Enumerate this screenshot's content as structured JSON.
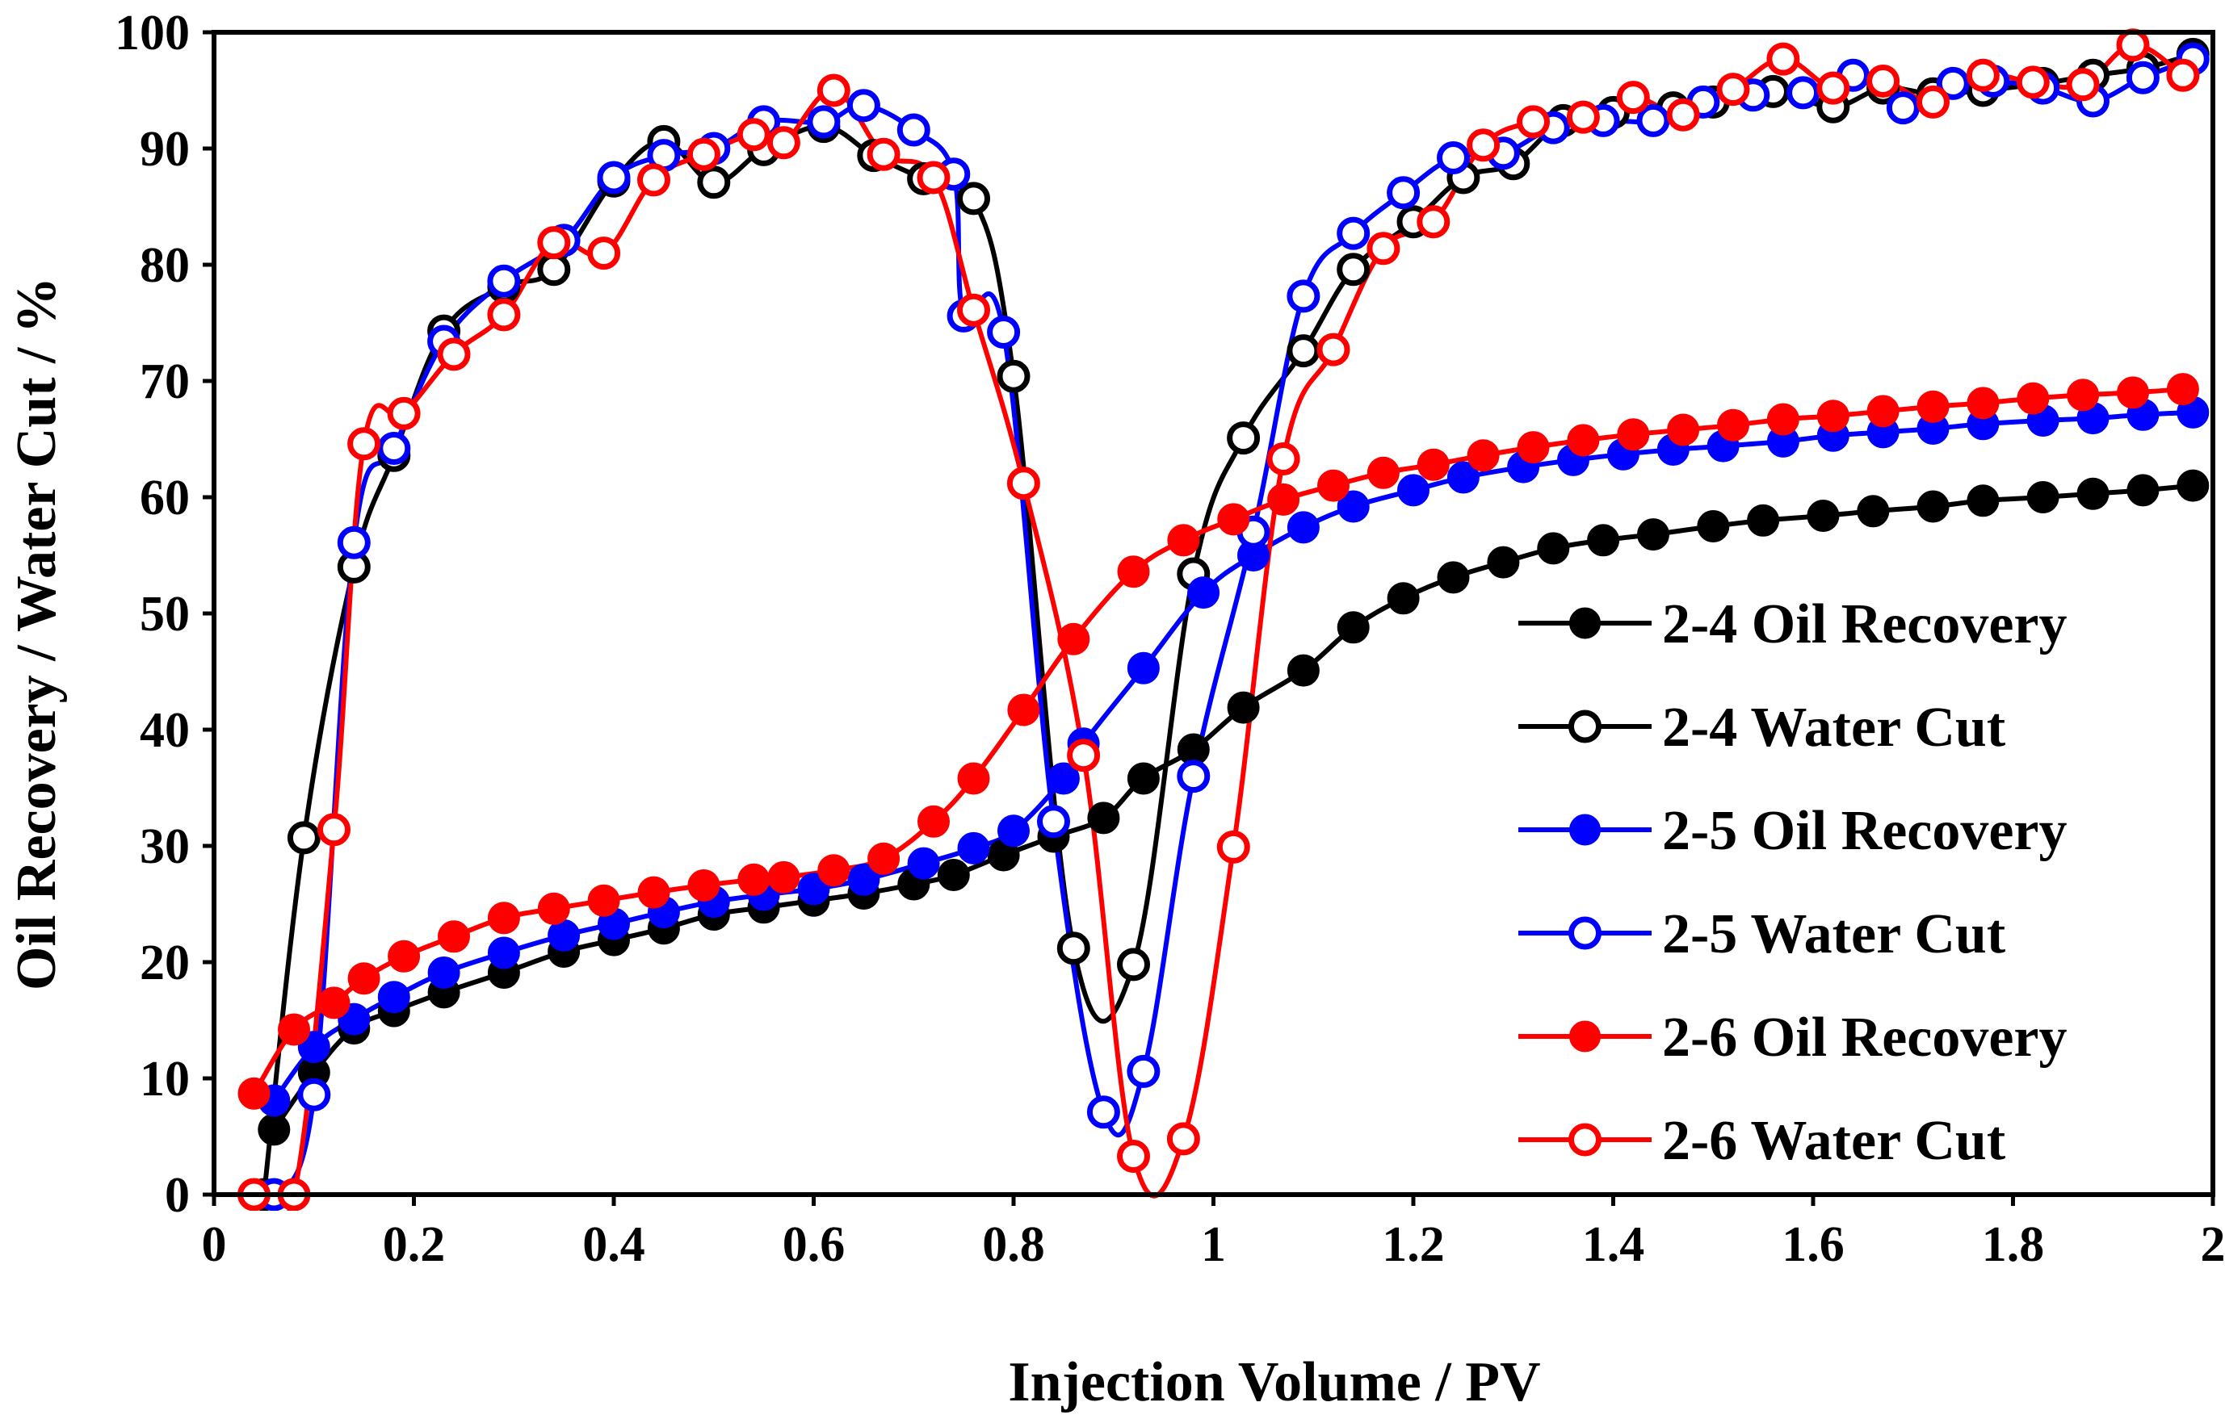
{
  "chart_data": {
    "type": "line",
    "title": "",
    "xlabel": "Injection Volume / PV",
    "ylabel": "Oil Recovery / Water Cut / %",
    "xlim": [
      0,
      2
    ],
    "ylim": [
      0,
      100
    ],
    "xticks": [
      0,
      0.2,
      0.4,
      0.6,
      0.8,
      1,
      1.2,
      1.4,
      1.6,
      1.8,
      2
    ],
    "xtick_labels": [
      "0",
      "0.2",
      "0.4",
      "0.6",
      "0.8",
      "1",
      "1.2",
      "1.4",
      "1.6",
      "1.8",
      "2"
    ],
    "yticks": [
      0,
      10,
      20,
      30,
      40,
      50,
      60,
      70,
      80,
      90,
      100
    ],
    "ytick_labels": [
      "0",
      "10",
      "20",
      "30",
      "40",
      "50",
      "60",
      "70",
      "80",
      "90",
      "100"
    ],
    "grid": false,
    "legend_position": "right",
    "series": [
      {
        "name": "2-4 Oil Recovery",
        "color": "#000000",
        "marker": "filled",
        "x": [
          0.06,
          0.1,
          0.14,
          0.18,
          0.23,
          0.29,
          0.35,
          0.4,
          0.45,
          0.5,
          0.55,
          0.6,
          0.65,
          0.7,
          0.74,
          0.79,
          0.84,
          0.89,
          0.93,
          0.98,
          1.03,
          1.09,
          1.14,
          1.19,
          1.24,
          1.29,
          1.34,
          1.39,
          1.44,
          1.5,
          1.55,
          1.61,
          1.66,
          1.72,
          1.77,
          1.83,
          1.88,
          1.93,
          1.98
        ],
        "y": [
          5.6,
          10.5,
          14.3,
          15.8,
          17.4,
          19.1,
          20.9,
          21.9,
          22.9,
          24.1,
          24.7,
          25.3,
          25.9,
          26.7,
          27.5,
          29.2,
          30.8,
          32.4,
          35.8,
          38.3,
          41.9,
          45.1,
          48.8,
          51.3,
          53.1,
          54.4,
          55.6,
          56.3,
          56.8,
          57.5,
          58.0,
          58.4,
          58.8,
          59.2,
          59.7,
          60.0,
          60.3,
          60.6,
          61.0
        ]
      },
      {
        "name": "2-4 Water Cut",
        "color": "#000000",
        "marker": "open",
        "x": [
          0.05,
          0.09,
          0.14,
          0.18,
          0.23,
          0.29,
          0.34,
          0.4,
          0.45,
          0.5,
          0.55,
          0.61,
          0.66,
          0.71,
          0.76,
          0.8,
          0.86,
          0.92,
          0.98,
          1.03,
          1.09,
          1.14,
          1.2,
          1.25,
          1.3,
          1.35,
          1.4,
          1.46,
          1.5,
          1.56,
          1.62,
          1.67,
          1.72,
          1.77,
          1.83,
          1.88,
          1.93,
          1.98
        ],
        "y": [
          0,
          30.7,
          54.0,
          63.6,
          74.3,
          78.1,
          79.6,
          87.2,
          90.6,
          87.1,
          89.9,
          91.9,
          89.4,
          87.4,
          85.7,
          70.4,
          21.2,
          19.8,
          53.4,
          65.1,
          72.6,
          79.6,
          83.7,
          87.5,
          88.7,
          92.4,
          93.1,
          93.5,
          94.0,
          94.9,
          93.6,
          95.2,
          94.7,
          95.0,
          95.6,
          96.3,
          96.9,
          98.1
        ]
      },
      {
        "name": "2-5 Oil Recovery",
        "color": "#0000ff",
        "marker": "filled",
        "x": [
          0.06,
          0.1,
          0.14,
          0.18,
          0.23,
          0.29,
          0.35,
          0.4,
          0.45,
          0.5,
          0.55,
          0.6,
          0.65,
          0.71,
          0.76,
          0.8,
          0.85,
          0.87,
          0.93,
          0.99,
          1.04,
          1.09,
          1.14,
          1.2,
          1.25,
          1.31,
          1.36,
          1.41,
          1.46,
          1.51,
          1.57,
          1.62,
          1.67,
          1.72,
          1.77,
          1.83,
          1.88,
          1.93,
          1.98
        ],
        "y": [
          8.1,
          12.7,
          15.1,
          17.0,
          19.1,
          20.8,
          22.3,
          23.3,
          24.3,
          25.2,
          25.8,
          26.3,
          27.1,
          28.5,
          29.8,
          31.3,
          35.8,
          38.8,
          45.3,
          51.8,
          55.0,
          57.4,
          59.2,
          60.6,
          61.7,
          62.6,
          63.2,
          63.7,
          64.1,
          64.4,
          64.8,
          65.3,
          65.6,
          65.9,
          66.3,
          66.6,
          66.8,
          67.1,
          67.3
        ]
      },
      {
        "name": "2-5 Water Cut",
        "color": "#0000ff",
        "marker": "open",
        "x": [
          0.06,
          0.1,
          0.14,
          0.18,
          0.23,
          0.29,
          0.35,
          0.4,
          0.45,
          0.5,
          0.55,
          0.61,
          0.65,
          0.7,
          0.74,
          0.75,
          0.79,
          0.84,
          0.89,
          0.93,
          0.98,
          1.04,
          1.09,
          1.14,
          1.19,
          1.24,
          1.29,
          1.34,
          1.39,
          1.44,
          1.49,
          1.54,
          1.59,
          1.64,
          1.69,
          1.74,
          1.78,
          1.83,
          1.88,
          1.93,
          1.98
        ],
        "y": [
          0,
          8.6,
          56.1,
          64.2,
          73.4,
          78.6,
          82.1,
          87.5,
          89.4,
          90.0,
          92.3,
          92.3,
          93.7,
          91.6,
          87.8,
          75.6,
          74.2,
          32.1,
          7.1,
          10.6,
          36.0,
          57.0,
          77.3,
          82.7,
          86.2,
          89.2,
          89.6,
          91.8,
          92.4,
          92.4,
          94.0,
          94.6,
          94.8,
          96.3,
          93.5,
          95.6,
          95.8,
          95.2,
          94.1,
          96.1,
          97.7
        ]
      },
      {
        "name": "2-6 Oil Recovery",
        "color": "#ff0000",
        "marker": "filled",
        "x": [
          0.04,
          0.08,
          0.12,
          0.15,
          0.19,
          0.24,
          0.29,
          0.34,
          0.39,
          0.44,
          0.49,
          0.54,
          0.57,
          0.62,
          0.67,
          0.72,
          0.76,
          0.81,
          0.86,
          0.92,
          0.97,
          1.02,
          1.07,
          1.12,
          1.17,
          1.22,
          1.27,
          1.32,
          1.37,
          1.42,
          1.47,
          1.52,
          1.57,
          1.62,
          1.67,
          1.72,
          1.77,
          1.82,
          1.87,
          1.92,
          1.97
        ],
        "y": [
          8.7,
          14.2,
          16.5,
          18.6,
          20.5,
          22.2,
          23.8,
          24.6,
          25.3,
          26.0,
          26.6,
          27.1,
          27.3,
          27.9,
          28.9,
          32.1,
          35.8,
          41.7,
          47.8,
          53.6,
          56.3,
          58.1,
          59.8,
          61.0,
          62.1,
          62.8,
          63.6,
          64.3,
          64.9,
          65.4,
          65.8,
          66.2,
          66.7,
          67.0,
          67.4,
          67.8,
          68.1,
          68.5,
          68.8,
          69.0,
          69.3
        ]
      },
      {
        "name": "2-6 Water Cut",
        "color": "#ff0000",
        "marker": "open",
        "x": [
          0.04,
          0.08,
          0.12,
          0.15,
          0.19,
          0.24,
          0.29,
          0.34,
          0.39,
          0.44,
          0.49,
          0.54,
          0.57,
          0.62,
          0.67,
          0.72,
          0.76,
          0.81,
          0.87,
          0.92,
          0.97,
          1.02,
          1.07,
          1.12,
          1.17,
          1.22,
          1.27,
          1.32,
          1.37,
          1.42,
          1.47,
          1.52,
          1.57,
          1.62,
          1.67,
          1.72,
          1.77,
          1.82,
          1.87,
          1.92,
          1.97
        ],
        "y": [
          0,
          0,
          31.4,
          64.6,
          67.2,
          72.3,
          75.7,
          81.9,
          81.0,
          87.3,
          89.5,
          91.2,
          90.5,
          95.0,
          89.5,
          87.5,
          76.1,
          61.2,
          37.8,
          3.3,
          4.8,
          29.9,
          63.3,
          72.7,
          81.4,
          83.7,
          90.3,
          92.3,
          92.7,
          94.4,
          92.9,
          95.1,
          97.7,
          95.2,
          95.8,
          94.0,
          96.3,
          95.7,
          95.5,
          98.9,
          96.3
        ]
      }
    ]
  }
}
